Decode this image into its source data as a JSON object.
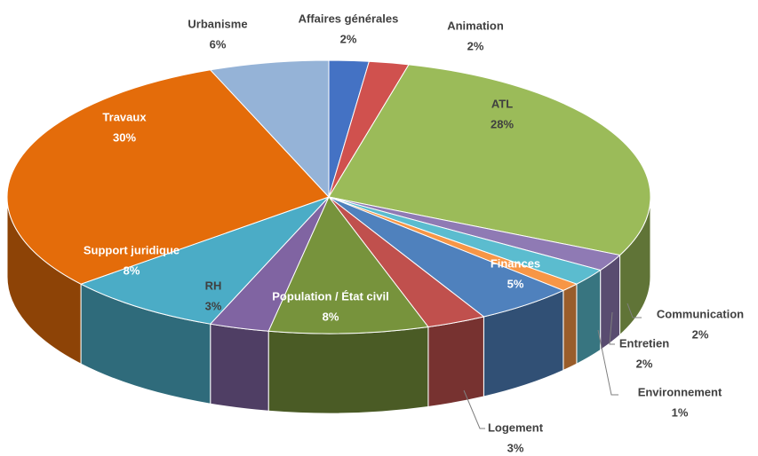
{
  "chart_data": {
    "type": "pie",
    "categories": [
      "Affaires générales",
      "Animation",
      "ATL",
      "Communication",
      "Entretien",
      "Environnement",
      "Finances",
      "Logement",
      "Population  / État civil",
      "RH",
      "Support  juridique",
      "Travaux",
      "Urbanisme"
    ],
    "values": [
      2,
      2,
      28,
      2,
      2,
      1,
      5,
      3,
      8,
      3,
      8,
      30,
      6
    ],
    "value_labels": [
      "2%",
      "2%",
      "28%",
      "2%",
      "2%",
      "1%",
      "5%",
      "3%",
      "8%",
      "3%",
      "8%",
      "30%",
      "6%"
    ],
    "colors": [
      "#4472c4",
      "#d0514e",
      "#9bbb59",
      "#8f7ab4",
      "#5bbccf",
      "#f79646",
      "#4f81bd",
      "#c0504d",
      "#77933c",
      "#8064a2",
      "#4bacc6",
      "#e46c0a",
      "#95b3d7"
    ]
  }
}
